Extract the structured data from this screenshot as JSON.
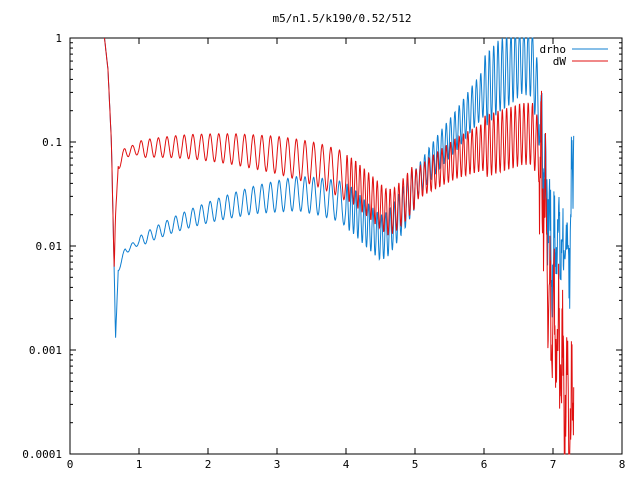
{
  "chart_data": {
    "type": "line",
    "title": "m5/n1.5/k190/0.52/512",
    "xlabel": "",
    "ylabel": "",
    "xlim": [
      0,
      8
    ],
    "ylim": [
      0.0001,
      1
    ],
    "yscale": "log",
    "x_ticks": [
      "0",
      "1",
      "2",
      "3",
      "4",
      "5",
      "6",
      "7",
      "8"
    ],
    "y_ticks": [
      "0.0001",
      "0.001",
      "0.01",
      "0.1",
      "1"
    ],
    "legend_position": "top-right",
    "grid": false,
    "series": [
      {
        "name": "drho",
        "color": "#0f7fd1",
        "x": [
          0.5,
          0.55,
          0.6,
          0.64,
          0.66,
          0.7,
          0.8,
          1.0,
          1.2,
          1.5,
          1.8,
          2.1,
          2.4,
          2.7,
          3.0,
          3.3,
          3.6,
          3.9,
          4.1,
          4.3,
          4.5,
          4.6,
          4.7,
          4.85,
          5.0,
          5.2,
          5.4,
          5.6,
          5.8,
          6.0,
          6.2,
          6.4,
          6.55,
          6.7,
          6.8,
          6.9,
          7.0,
          7.05,
          7.1,
          7.15,
          7.2,
          7.25,
          7.3
        ],
        "y": [
          1.0,
          0.5,
          0.1,
          0.006,
          0.0013,
          0.006,
          0.009,
          0.011,
          0.013,
          0.016,
          0.019,
          0.022,
          0.025,
          0.028,
          0.03,
          0.032,
          0.03,
          0.027,
          0.022,
          0.016,
          0.012,
          0.013,
          0.016,
          0.024,
          0.038,
          0.06,
          0.09,
          0.13,
          0.2,
          0.3,
          0.42,
          0.52,
          0.65,
          0.6,
          0.2,
          0.04,
          0.006,
          0.015,
          0.012,
          0.007,
          0.01,
          0.01,
          0.13
        ]
      },
      {
        "name": "dW",
        "color": "#e01010",
        "x": [
          0.5,
          0.55,
          0.6,
          0.64,
          0.66,
          0.7,
          0.8,
          1.0,
          1.2,
          1.5,
          1.8,
          2.1,
          2.4,
          2.7,
          3.0,
          3.3,
          3.6,
          3.9,
          4.1,
          4.3,
          4.5,
          4.6,
          4.7,
          4.85,
          5.0,
          5.2,
          5.4,
          5.6,
          5.8,
          6.0,
          6.2,
          6.4,
          6.55,
          6.7,
          6.8,
          6.9,
          6.95,
          7.0,
          7.05,
          7.1,
          7.15,
          7.2,
          7.25,
          7.3
        ],
        "y": [
          1.0,
          0.5,
          0.1,
          0.006,
          0.02,
          0.06,
          0.08,
          0.085,
          0.088,
          0.09,
          0.09,
          0.088,
          0.085,
          0.08,
          0.075,
          0.068,
          0.06,
          0.05,
          0.042,
          0.032,
          0.024,
          0.021,
          0.022,
          0.028,
          0.038,
          0.048,
          0.058,
          0.07,
          0.08,
          0.09,
          0.1,
          0.11,
          0.12,
          0.12,
          0.08,
          0.02,
          0.003,
          0.0013,
          0.0015,
          0.0008,
          0.0005,
          0.0003,
          0.00013,
          0.0007
        ]
      }
    ]
  }
}
